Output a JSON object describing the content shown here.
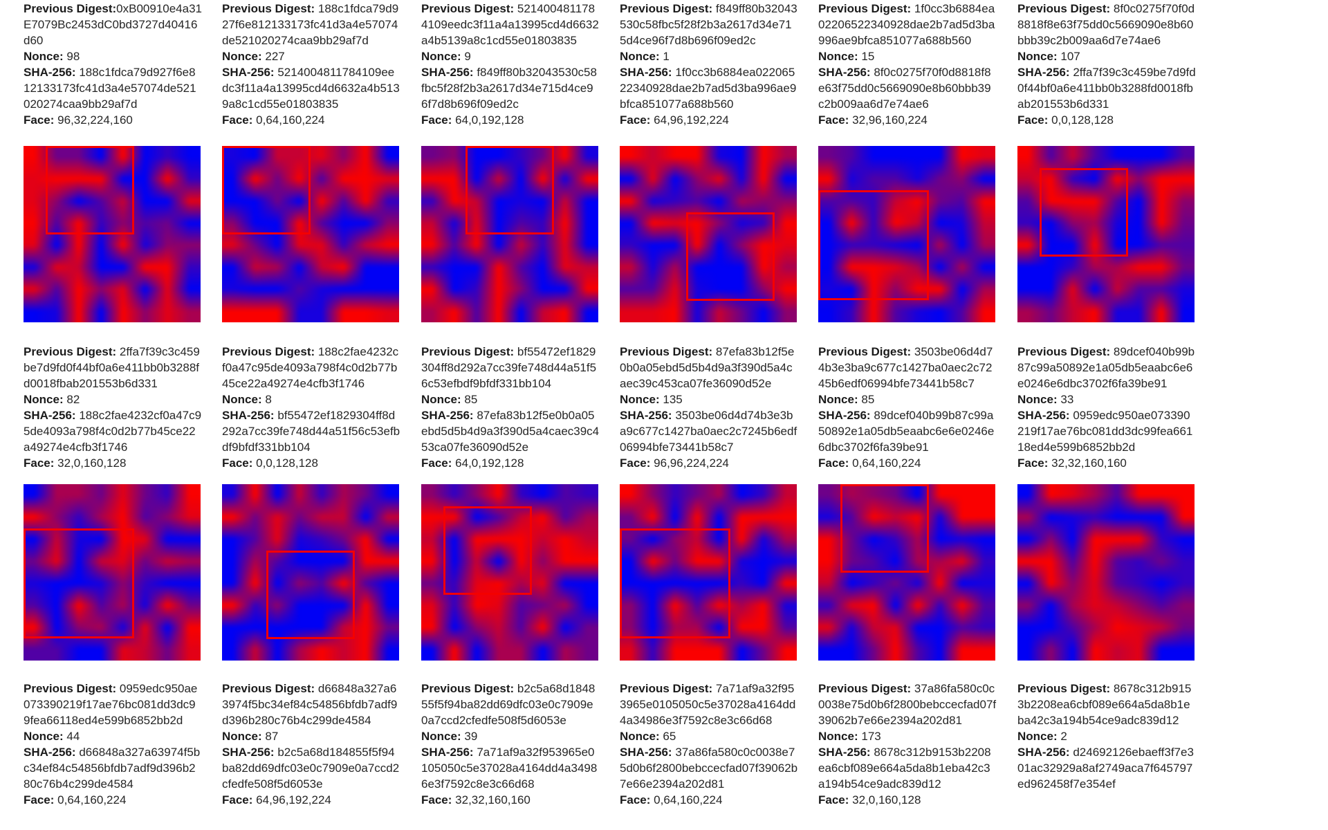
{
  "labels": {
    "prev": "Previous Digest:",
    "nonce": "Nonce:",
    "sha": "SHA-256:",
    "face": "Face:"
  },
  "palette": {
    "cell_low_value_color": "#0000ff",
    "cell_high_value_color": "#ff0000",
    "face_box_color": "#f40000",
    "text_color": "#262626",
    "background": "#ffffff"
  },
  "blocks": [
    {
      "prev": "0xB00910e4a31E7079Bc2453dC0bd3727d40416d60",
      "nonce": "98",
      "sha": "188c1fdca79d927f6e812133173fc41d3a4e57074de521020274caa9bb29af7d",
      "face": "96,32,224,160"
    },
    {
      "prev": "188c1fdca79d927f6e812133173fc41d3a4e57074de521020274caa9bb29af7d",
      "nonce": "227",
      "sha": "5214004811784109eedc3f11a4a13995cd4d6632a4b5139a8c1cd55e01803835",
      "face": "0,64,160,224"
    },
    {
      "prev": "5214004811784109eedc3f11a4a13995cd4d6632a4b5139a8c1cd55e01803835",
      "nonce": "9",
      "sha": "f849ff80b32043530c58fbc5f28f2b3a2617d34e715d4ce96f7d8b696f09ed2c",
      "face": "64,0,192,128"
    },
    {
      "prev": "f849ff80b32043530c58fbc5f28f2b3a2617d34e715d4ce96f7d8b696f09ed2c",
      "nonce": "1",
      "sha": "1f0cc3b6884ea02206522340928dae2b7ad5d3ba996ae9bfca851077a688b560",
      "face": "64,96,192,224"
    },
    {
      "prev": "1f0cc3b6884ea02206522340928dae2b7ad5d3ba996ae9bfca851077a688b560",
      "nonce": "15",
      "sha": "8f0c0275f70f0d8818f8e63f75dd0c5669090e8b60bbb39c2b009aa6d7e74ae6",
      "face": "32,96,160,224"
    },
    {
      "prev": "8f0c0275f70f0d8818f8e63f75dd0c5669090e8b60bbb39c2b009aa6d7e74ae6",
      "nonce": "107",
      "sha": "2ffa7f39c3c459be7d9fd0f44bf0a6e411bb0b3288fd0018fbab201553b6d331",
      "face": "0,0,128,128"
    },
    {
      "prev": "2ffa7f39c3c459be7d9fd0f44bf0a6e411bb0b3288fd0018fbab201553b6d331",
      "nonce": "82",
      "sha": "188c2fae4232cf0a47c95de4093a798f4c0d2b77b45ce22a49274e4cfb3f1746",
      "face": "32,0,160,128"
    },
    {
      "prev": "188c2fae4232cf0a47c95de4093a798f4c0d2b77b45ce22a49274e4cfb3f1746",
      "nonce": "8",
      "sha": "bf55472ef1829304ff8d292a7cc39fe748d44a51f56c53efbdf9bfdf331bb104",
      "face": "0,0,128,128"
    },
    {
      "prev": "bf55472ef1829304ff8d292a7cc39fe748d44a51f56c53efbdf9bfdf331bb104",
      "nonce": "85",
      "sha": "87efa83b12f5e0b0a05ebd5d5b4d9a3f390d5a4caec39c453ca07fe36090d52e",
      "face": "64,0,192,128"
    },
    {
      "prev": "87efa83b12f5e0b0a05ebd5d5b4d9a3f390d5a4caec39c453ca07fe36090d52e",
      "nonce": "135",
      "sha": "3503be06d4d74b3e3ba9c677c1427ba0aec2c7245b6edf06994bfe73441b58c7",
      "face": "96,96,224,224"
    },
    {
      "prev": "3503be06d4d74b3e3ba9c677c1427ba0aec2c7245b6edf06994bfe73441b58c7",
      "nonce": "85",
      "sha": "89dcef040b99b87c99a50892e1a05db5eaabc6e6e0246e6dbc3702f6fa39be91",
      "face": "0,64,160,224"
    },
    {
      "prev": "89dcef040b99b87c99a50892e1a05db5eaabc6e6e0246e6dbc3702f6fa39be91",
      "nonce": "33",
      "sha": "0959edc950ae073390219f17ae76bc081dd3dc99fea66118ed4e599b6852bb2d",
      "face": "32,32,160,160"
    },
    {
      "prev": "0959edc950ae073390219f17ae76bc081dd3dc99fea66118ed4e599b6852bb2d",
      "nonce": "44",
      "sha": "d66848a327a63974f5bc34ef84c54856bfdb7adf9d396b280c76b4c299de4584",
      "face": "0,64,160,224"
    },
    {
      "prev": "d66848a327a63974f5bc34ef84c54856bfdb7adf9d396b280c76b4c299de4584",
      "nonce": "87",
      "sha": "b2c5a68d184855f5f94ba82dd69dfc03e0c7909e0a7ccd2cfedfe508f5d6053e",
      "face": "64,96,192,224"
    },
    {
      "prev": "b2c5a68d184855f5f94ba82dd69dfc03e0c7909e0a7ccd2cfedfe508f5d6053e",
      "nonce": "39",
      "sha": "7a71af9a32f953965e0105050c5e37028a4164dd4a34986e3f7592c8e3c66d68",
      "face": "32,32,160,160"
    },
    {
      "prev": "7a71af9a32f953965e0105050c5e37028a4164dd4a34986e3f7592c8e3c66d68",
      "nonce": "65",
      "sha": "37a86fa580c0c0038e75d0b6f2800bebccecfad07f39062b7e66e2394a202d81",
      "face": "0,64,160,224"
    },
    {
      "prev": "37a86fa580c0c0038e75d0b6f2800bebccecfad07f39062b7e66e2394a202d81",
      "nonce": "173",
      "sha": "8678c312b9153b2208ea6cbf089e664a5da8b1eba42c3a194b54ce9adc839d12",
      "face": "32,0,160,128"
    },
    {
      "prev": "8678c312b9153b2208ea6cbf089e664a5da8b1eba42c3a194b54ce9adc839d12",
      "nonce": "2",
      "sha": "d24692126ebaeff3f7e301ac32929a8af2749aca7f645797ed962458f7e354ef"
    }
  ]
}
